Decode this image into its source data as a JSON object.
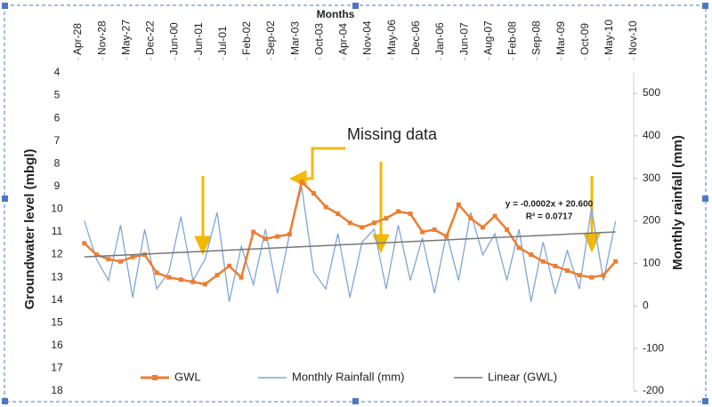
{
  "chart_data": {
    "type": "line",
    "x_label": "Months",
    "y_label": "Groundwater level (mbgl)",
    "y2_label": "Monthly rainfall (mm)",
    "xticks": [
      {
        "value": 0,
        "label": "Apr-28"
      },
      {
        "value": 1,
        "label": "Nov-28"
      },
      {
        "value": 2,
        "label": "May-27"
      },
      {
        "value": 3,
        "label": "Dec-22"
      },
      {
        "value": 4,
        "label": "Jun-00"
      },
      {
        "value": 5,
        "label": "Jun-01"
      },
      {
        "value": 6,
        "label": "Jul-01"
      },
      {
        "value": 7,
        "label": "Feb-02"
      },
      {
        "value": 8,
        "label": "Sep-02"
      },
      {
        "value": 9,
        "label": "Mar-03"
      },
      {
        "value": 10,
        "label": "Oct-03"
      },
      {
        "value": 11,
        "label": "Apr-04"
      },
      {
        "value": 12,
        "label": "Nov-04"
      },
      {
        "value": 13,
        "label": "May-06"
      },
      {
        "value": 14,
        "label": "Dec-06"
      },
      {
        "value": 15,
        "label": "Jan-06"
      },
      {
        "value": 16,
        "label": "Jun-07"
      },
      {
        "value": 17,
        "label": "Aug-07"
      },
      {
        "value": 18,
        "label": "Feb-08"
      },
      {
        "value": 19,
        "label": "Sep-08"
      },
      {
        "value": 20,
        "label": "Mar-09"
      },
      {
        "value": 21,
        "label": "Oct-09"
      },
      {
        "value": 22,
        "label": "May-10"
      },
      {
        "value": 23,
        "label": "Nov-10"
      }
    ],
    "xlim": [
      0,
      23
    ],
    "ylim": [
      4,
      18
    ],
    "y_inverted": true,
    "yticks": [
      4,
      5,
      6,
      7,
      8,
      9,
      10,
      11,
      12,
      13,
      14,
      15,
      16,
      17,
      18
    ],
    "y2lim": [
      -200,
      500
    ],
    "y2ticks": [
      -200,
      -100,
      0,
      100,
      200,
      300,
      400,
      500
    ],
    "grid": false,
    "legend": "bottom",
    "x": [
      0.25,
      0.75,
      1.25,
      1.75,
      2.25,
      2.75,
      3.25,
      3.75,
      4.25,
      4.75,
      5.25,
      5.75,
      6.25,
      6.75,
      7.25,
      7.75,
      8.25,
      8.75,
      9.25,
      9.75,
      10.25,
      10.75,
      11.25,
      11.75,
      12.25,
      12.75,
      13.25,
      13.75,
      14.25,
      14.75,
      15.25,
      15.75,
      16.25,
      16.75,
      17.25,
      17.75,
      18.25,
      18.75,
      19.25,
      19.75,
      20.25,
      20.75,
      21.25,
      21.75,
      22.25
    ],
    "series": [
      {
        "name": "GWL",
        "color": "#ed7d31",
        "axis": "y",
        "values": [
          11.5,
          12.0,
          12.2,
          12.3,
          12.1,
          12.0,
          12.8,
          13.0,
          13.1,
          13.2,
          13.3,
          12.9,
          12.5,
          13.0,
          11.0,
          11.3,
          11.2,
          11.1,
          8.8,
          9.3,
          9.9,
          10.2,
          10.6,
          10.8,
          10.6,
          10.4,
          10.1,
          10.2,
          11.0,
          10.9,
          11.2,
          9.8,
          10.4,
          10.8,
          10.3,
          10.9,
          11.7,
          12.0,
          12.3,
          12.5,
          12.7,
          12.9,
          13.0,
          12.9,
          12.3
        ]
      },
      {
        "name": "Monthly Rainfall (mm)",
        "color": "#7ea6d8",
        "axis": "y2",
        "values": [
          200,
          110,
          60,
          190,
          20,
          180,
          40,
          80,
          210,
          60,
          110,
          220,
          10,
          140,
          50,
          180,
          30,
          170,
          280,
          80,
          40,
          170,
          20,
          150,
          180,
          40,
          190,
          60,
          160,
          30,
          170,
          60,
          220,
          120,
          170,
          60,
          180,
          10,
          150,
          30,
          130,
          40,
          230,
          60,
          200
        ]
      },
      {
        "name": "Linear (GWL)",
        "color": "#777777",
        "axis": "y",
        "x": [
          0.25,
          22.25
        ],
        "values": [
          12.1,
          11.0
        ]
      }
    ],
    "annotations": [
      "Missing data",
      "y = -0.0002x + 20.600",
      "R² = 0.0717"
    ]
  }
}
